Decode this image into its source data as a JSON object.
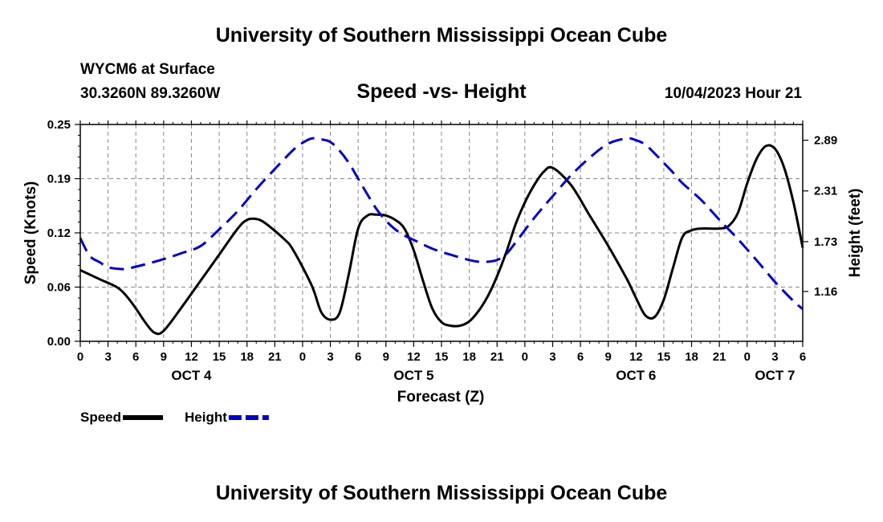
{
  "header": {
    "title": "University of Southern Mississippi Ocean Cube",
    "station": "WYCM6 at Surface",
    "coordinates": "30.3260N  89.3260W",
    "run_time": "10/04/2023 Hour 21"
  },
  "footer": {
    "title": "University of Southern Mississippi Ocean Cube"
  },
  "colors": {
    "speed": "#000000",
    "height": "#0000cc",
    "grid": "#888888"
  },
  "chart_data": {
    "type": "line",
    "title": "Speed -vs- Height",
    "xlabel": "Forecast (Z)",
    "ylabel": "Speed (Knots)",
    "y2label": "Height (feet)",
    "x_range_hours": [
      0,
      78
    ],
    "x_tick_labels": [
      "0",
      "3",
      "6",
      "9",
      "12",
      "15",
      "18",
      "21",
      "0",
      "3",
      "6",
      "9",
      "12",
      "15",
      "18",
      "21",
      "0",
      "3",
      "6",
      "9",
      "12",
      "15",
      "18",
      "21",
      "0",
      "3",
      "6"
    ],
    "day_labels": [
      {
        "label": "OCT 4",
        "hour": 12
      },
      {
        "label": "OCT 5",
        "hour": 36
      },
      {
        "label": "OCT 6",
        "hour": 60
      },
      {
        "label": "OCT 7",
        "hour": 75
      }
    ],
    "y_ticks": [
      "0.00",
      "0.06",
      "0.12",
      "0.19",
      "0.25"
    ],
    "y_range": [
      0,
      0.25
    ],
    "y2_ticks": [
      "1.16",
      "1.73",
      "2.31",
      "2.89"
    ],
    "y2_range": [
      0.59,
      3.07
    ],
    "series": [
      {
        "name": "Speed",
        "axis": "left",
        "style": "solid",
        "x": [
          0,
          2,
          4,
          5,
          6,
          7,
          8,
          9,
          11,
          13,
          15,
          17,
          18,
          19,
          20,
          22,
          23,
          25,
          26,
          27,
          28,
          29,
          30,
          31,
          32,
          33,
          34,
          35,
          36,
          37,
          38,
          39,
          40,
          41,
          42,
          43,
          44,
          45,
          46,
          47,
          48,
          49,
          50,
          51,
          53,
          55,
          57,
          59,
          60,
          61,
          62,
          63,
          64,
          65,
          66,
          67,
          68,
          69,
          70,
          71,
          72,
          73,
          74,
          75,
          76,
          77,
          78
        ],
        "values": [
          0.082,
          0.072,
          0.062,
          0.052,
          0.038,
          0.022,
          0.01,
          0.012,
          0.04,
          0.07,
          0.1,
          0.13,
          0.14,
          0.141,
          0.136,
          0.118,
          0.105,
          0.064,
          0.034,
          0.025,
          0.033,
          0.078,
          0.13,
          0.145,
          0.146,
          0.145,
          0.14,
          0.13,
          0.105,
          0.07,
          0.038,
          0.022,
          0.018,
          0.018,
          0.023,
          0.035,
          0.052,
          0.075,
          0.103,
          0.135,
          0.16,
          0.18,
          0.195,
          0.2,
          0.18,
          0.145,
          0.11,
          0.072,
          0.05,
          0.03,
          0.028,
          0.048,
          0.085,
          0.12,
          0.128,
          0.13,
          0.13,
          0.13,
          0.133,
          0.148,
          0.182,
          0.21,
          0.225,
          0.222,
          0.2,
          0.16,
          0.108
        ]
      },
      {
        "name": "Height",
        "axis": "right",
        "style": "dashed",
        "x": [
          0,
          1,
          2,
          3,
          4,
          5,
          7,
          9,
          11,
          13,
          15,
          17,
          19,
          21,
          23,
          24,
          25,
          26,
          27,
          28,
          29,
          30,
          31,
          32,
          33,
          34,
          35,
          36,
          38,
          40,
          42,
          43,
          44,
          45,
          46,
          47,
          49,
          51,
          53,
          55,
          57,
          59,
          60,
          61,
          62,
          63,
          64,
          65,
          67,
          69,
          71,
          73,
          75,
          77,
          78
        ],
        "values": [
          1.77,
          1.57,
          1.5,
          1.44,
          1.42,
          1.42,
          1.47,
          1.53,
          1.6,
          1.68,
          1.87,
          2.08,
          2.33,
          2.56,
          2.78,
          2.86,
          2.91,
          2.9,
          2.87,
          2.77,
          2.63,
          2.45,
          2.27,
          2.1,
          1.97,
          1.87,
          1.8,
          1.75,
          1.65,
          1.58,
          1.52,
          1.5,
          1.5,
          1.52,
          1.59,
          1.72,
          2.0,
          2.25,
          2.49,
          2.69,
          2.85,
          2.91,
          2.89,
          2.84,
          2.74,
          2.63,
          2.52,
          2.4,
          2.21,
          1.98,
          1.76,
          1.52,
          1.27,
          1.05,
          0.96
        ]
      }
    ],
    "legend": [
      {
        "label": "Speed",
        "color": "#000000",
        "style": "solid"
      },
      {
        "label": "Height",
        "color": "#0000cc",
        "style": "dashed"
      }
    ],
    "grid": true
  }
}
